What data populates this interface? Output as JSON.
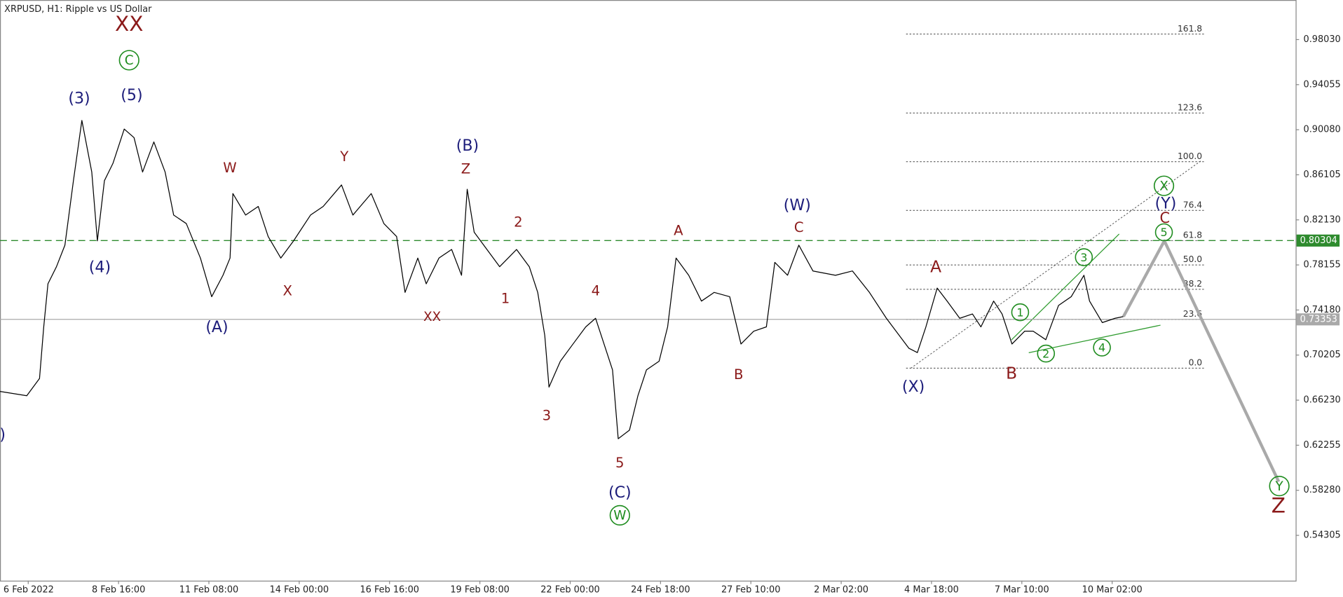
{
  "chart_data": {
    "type": "line",
    "title": "XRPUSD, H1:  Ripple vs US Dollar",
    "xlim": [
      -20,
      898
    ],
    "ylim": [
      0.5031,
      1.0152
    ],
    "xticks": [
      {
        "value": 0,
        "label": "6 Feb 2022"
      },
      {
        "value": 64,
        "label": "8 Feb 16:00"
      },
      {
        "value": 128,
        "label": "11 Feb 08:00"
      },
      {
        "value": 192,
        "label": "14 Feb 00:00"
      },
      {
        "value": 256,
        "label": "16 Feb 16:00"
      },
      {
        "value": 320,
        "label": "19 Feb 08:00"
      },
      {
        "value": 384,
        "label": "22 Feb 00:00"
      },
      {
        "value": 448,
        "label": "24 Feb 18:00"
      },
      {
        "value": 512,
        "label": "27 Feb 10:00"
      },
      {
        "value": 576,
        "label": "2 Mar 02:00"
      },
      {
        "value": 640,
        "label": "4 Mar 18:00"
      },
      {
        "value": 704,
        "label": "7 Mar 10:00"
      },
      {
        "value": 768,
        "label": "10 Mar 02:00"
      }
    ],
    "yticks": [
      {
        "value": 0.9803,
        "label": "0.98030"
      },
      0.94055,
      {
        "value": 0.9008,
        "label": "0.90080"
      },
      0.86105,
      {
        "value": 0.8213,
        "label": "0.82130"
      },
      0.78155,
      {
        "value": 0.7418,
        "label": "0.74180"
      },
      0.70205,
      {
        "value": 0.6623,
        "label": "0.66230"
      },
      0.62255,
      {
        "value": 0.5828,
        "label": "0.58280"
      },
      0.54305
    ],
    "series": [
      {
        "color": "#000000",
        "x": [
          -20,
          -1,
          8,
          11,
          14,
          20,
          26,
          32,
          38,
          45,
          49,
          54,
          60,
          68,
          75,
          81,
          89,
          97,
          103,
          112,
          122,
          130,
          138,
          143,
          145,
          154,
          163,
          170,
          179,
          188,
          200,
          209,
          222,
          230,
          243,
          252,
          261,
          267,
          276,
          282,
          291,
          300,
          307,
          311,
          316,
          325,
          334,
          346,
          355,
          361,
          366,
          369,
          377,
          386,
          395,
          402,
          407,
          414,
          418,
          426,
          432,
          438,
          447,
          453,
          459,
          468,
          477,
          486,
          497,
          505,
          514,
          523,
          529,
          538,
          546,
          556,
          572,
          584,
          596,
          608,
          624,
          630,
          636,
          644,
          651,
          660,
          669,
          675,
          684,
          690,
          697,
          706,
          712,
          721,
          730,
          739,
          748,
          752,
          761,
          770,
          776
        ],
        "values": [
          0.67,
          0.6662,
          0.6814,
          0.7269,
          0.7649,
          0.78,
          0.799,
          0.8559,
          0.909,
          0.8635,
          0.8028,
          0.8559,
          0.8711,
          0.9014,
          0.8938,
          0.8635,
          0.89,
          0.8635,
          0.8255,
          0.818,
          0.7876,
          0.7535,
          0.7724,
          0.7876,
          0.8445,
          0.8255,
          0.8331,
          0.8066,
          0.7876,
          0.8028,
          0.8255,
          0.8331,
          0.8521,
          0.8255,
          0.8445,
          0.818,
          0.8066,
          0.7573,
          0.7876,
          0.7649,
          0.7876,
          0.7952,
          0.7724,
          0.8483,
          0.8104,
          0.7952,
          0.78,
          0.7952,
          0.78,
          0.7573,
          0.7193,
          0.6738,
          0.6966,
          0.7118,
          0.7269,
          0.7345,
          0.7156,
          0.689,
          0.6283,
          0.6359,
          0.6662,
          0.689,
          0.6966,
          0.7269,
          0.7876,
          0.7724,
          0.7497,
          0.7573,
          0.7535,
          0.7118,
          0.7231,
          0.7269,
          0.7838,
          0.7724,
          0.799,
          0.7762,
          0.7724,
          0.7762,
          0.7573,
          0.7345,
          0.708,
          0.7042,
          0.7269,
          0.7611,
          0.7497,
          0.7345,
          0.7383,
          0.7269,
          0.7497,
          0.7383,
          0.7118,
          0.7231,
          0.7231,
          0.7156,
          0.7459,
          0.7535,
          0.7724,
          0.7497,
          0.7307,
          0.7345,
          0.736
        ]
      },
      {
        "color": "#a9a9a9",
        "x": [
          776,
          805,
          886
        ],
        "values": [
          0.736,
          0.8028,
          0.5904
        ]
      }
    ],
    "hlines": [
      {
        "value": 0.80304,
        "color": "#2e8b2e"
      },
      {
        "value": 0.73353,
        "color": "#a9a9a9"
      }
    ],
    "fib": {
      "x": [
        622,
        833
      ],
      "low": 0.6905,
      "high": 0.8726,
      "levels": [
        161.8,
        123.6,
        {
          "value": 100,
          "label": "100.0"
        },
        76.4,
        61.8,
        {
          "value": 50,
          "label": "50.0"
        },
        38.2,
        23.6,
        {
          "value": 0,
          "label": "0.0"
        }
      ]
    },
    "annotations": [
      "XX",
      "C",
      "(3)",
      "(5)",
      "(4)",
      "W",
      "(A)",
      "X",
      "Y",
      "XX",
      "(B)",
      "Z",
      "2",
      "1",
      "3",
      "4",
      "5",
      "(C)",
      "W",
      "A",
      "B",
      "(W)",
      "C",
      "(X)",
      "A",
      "B",
      "1",
      "2",
      "3",
      "4",
      "5",
      "X",
      "(Y)",
      "C",
      "Y",
      "Z",
      ")"
    ]
  }
}
